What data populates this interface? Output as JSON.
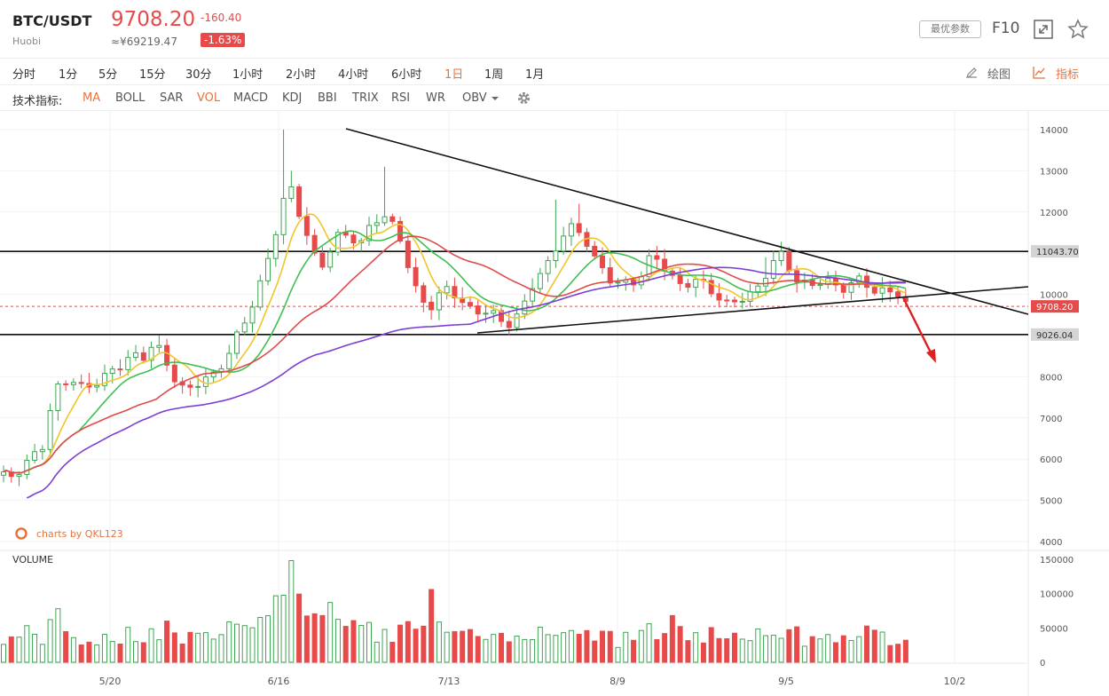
{
  "header": {
    "symbol": "BTC/USDT",
    "exchange": "Huobi",
    "price": "9708.20",
    "cny": "≈¥69219.47",
    "change": "-160.40",
    "change_pct": "-1.63%",
    "params_label": "最优参数",
    "f10_label": "F10"
  },
  "timeframes": [
    {
      "label": "分时"
    },
    {
      "label": "1分"
    },
    {
      "label": "5分"
    },
    {
      "label": "15分"
    },
    {
      "label": "30分"
    },
    {
      "label": "1小时"
    },
    {
      "label": "2小时"
    },
    {
      "label": "4小时"
    },
    {
      "label": "6小时"
    },
    {
      "label": "1日",
      "active": true
    },
    {
      "label": "1周"
    },
    {
      "label": "1月"
    }
  ],
  "tools": {
    "draw_label": "绘图",
    "indicator_label": "指标"
  },
  "indicators": {
    "label": "技术指标:",
    "items": [
      {
        "label": "MA",
        "active": true
      },
      {
        "label": "BOLL"
      },
      {
        "label": "SAR"
      },
      {
        "label": "VOL",
        "active": true
      },
      {
        "label": "MACD"
      },
      {
        "label": "KDJ"
      },
      {
        "label": "BBI"
      },
      {
        "label": "TRIX"
      },
      {
        "label": "RSI"
      },
      {
        "label": "WR"
      },
      {
        "label": "OBV"
      }
    ]
  },
  "watermark": "charts by QKL123",
  "chart_data": [
    {
      "type": "candlestick",
      "price_ticks": [
        4000,
        5000,
        6000,
        7000,
        8000,
        9000,
        10000,
        11000,
        12000,
        13000,
        14000
      ],
      "ylim": [
        3800,
        14300
      ],
      "date_ticks": [
        "5/20",
        "6/16",
        "7/13",
        "8/9",
        "9/5",
        "10/2"
      ],
      "price_labels": [
        {
          "value": 11043.7,
          "text": "11043.70",
          "color": "#d4d4d4"
        },
        {
          "value": 9026.04,
          "text": "9026.04",
          "color": "#d4d4d4"
        },
        {
          "value": 9708.2,
          "text": "9708.20",
          "color": "#e84a4a"
        }
      ],
      "horizontal_lines": [
        11043.7,
        9026.04
      ],
      "ma_colors": {
        "ma5": "#f0c52a",
        "ma10": "#3fbf52",
        "ma30": "#e04a4a",
        "ma60": "#7b3fd6"
      },
      "up_color": "#3da552",
      "down_color": "#e84a4a"
    },
    {
      "type": "bar",
      "title": "VOLUME",
      "ticks": [
        0,
        50000,
        100000,
        150000
      ],
      "ylim": [
        0,
        150000
      ]
    }
  ]
}
